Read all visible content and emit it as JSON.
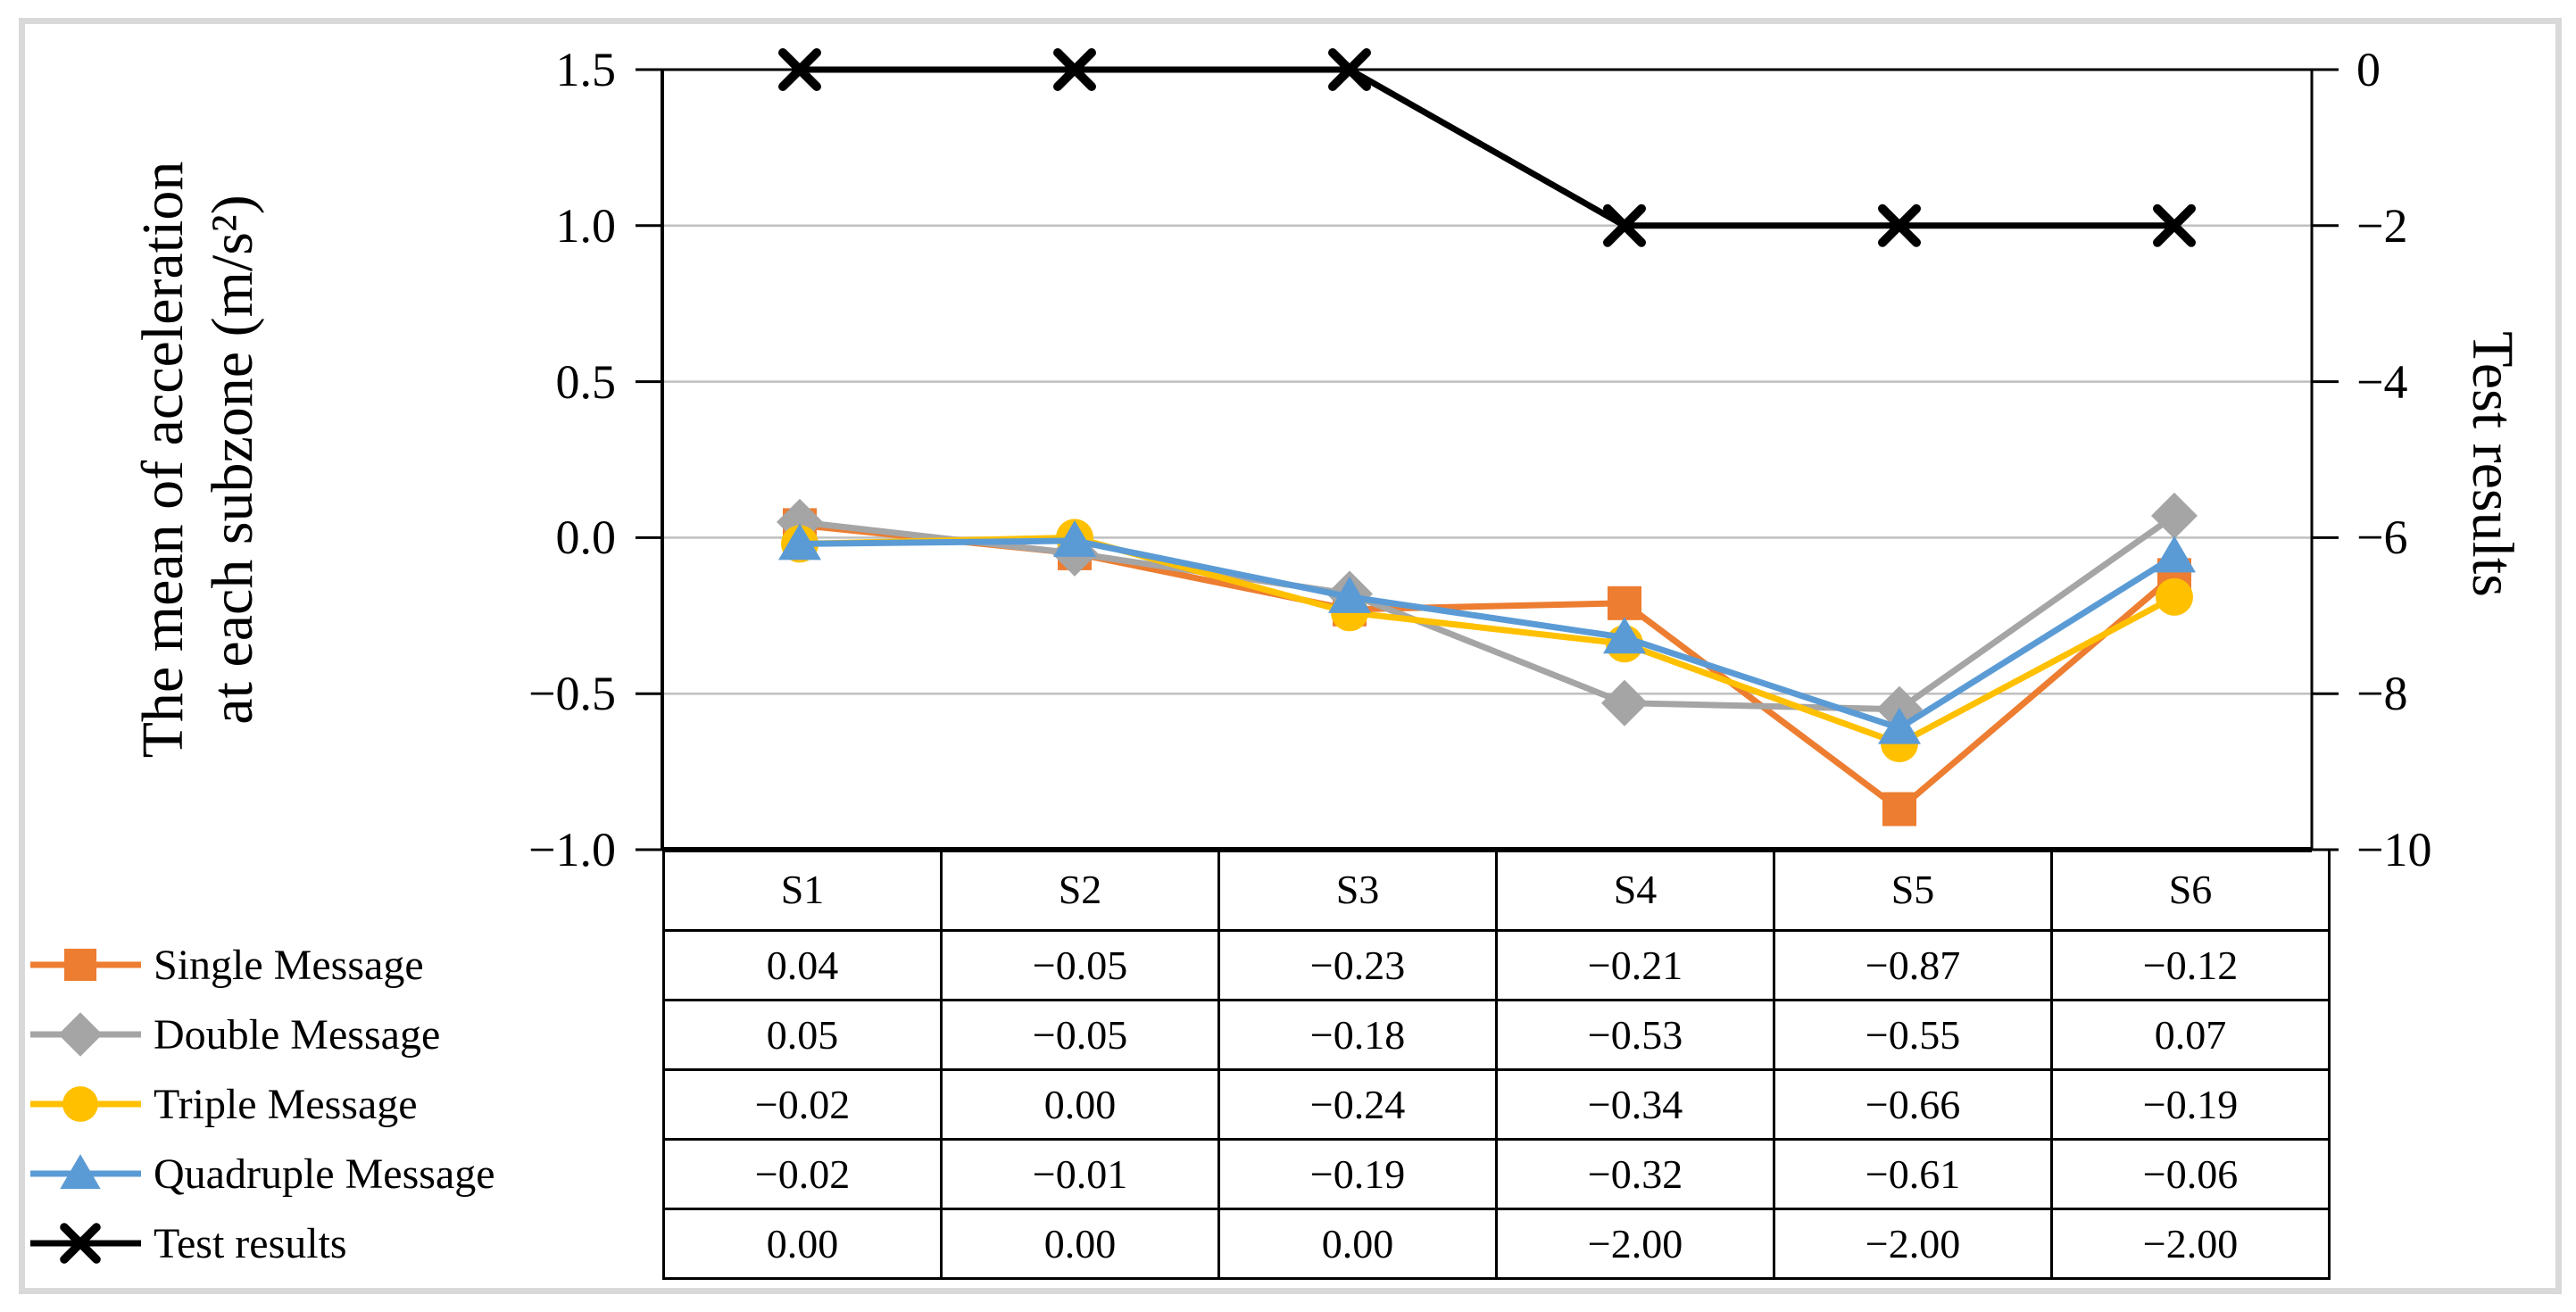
{
  "figure": {
    "background": "#FFFFFF",
    "frame_color": "#D9D9D9",
    "grid_color": "#BFBFBF",
    "axis_color": "#000000"
  },
  "chart_data": {
    "type": "line",
    "categories": [
      "S1",
      "S2",
      "S3",
      "S4",
      "S5",
      "S6"
    ],
    "series": [
      {
        "name": "Single Message",
        "color": "#ED7D31",
        "marker": "square",
        "axis": "left",
        "values": [
          0.04,
          -0.05,
          -0.23,
          -0.21,
          -0.87,
          -0.12
        ]
      },
      {
        "name": "Double Message",
        "color": "#A5A5A5",
        "marker": "diamond",
        "axis": "left",
        "values": [
          0.05,
          -0.05,
          -0.18,
          -0.53,
          -0.55,
          0.07
        ]
      },
      {
        "name": "Triple Message",
        "color": "#FFC000",
        "marker": "circle",
        "axis": "left",
        "values": [
          -0.02,
          0.0,
          -0.24,
          -0.34,
          -0.66,
          -0.19
        ]
      },
      {
        "name": "Quadruple Message",
        "color": "#5B9BD5",
        "marker": "triangle",
        "axis": "left",
        "values": [
          -0.02,
          -0.01,
          -0.19,
          -0.32,
          -0.61,
          -0.06
        ]
      },
      {
        "name": "Test results",
        "color": "#000000",
        "marker": "x",
        "axis": "right",
        "values": [
          0.0,
          0.0,
          0.0,
          -2.0,
          -2.0,
          -2.0
        ]
      }
    ],
    "left_axis": {
      "title_line1": "The mean of acceleration",
      "title_line2": "at each subzone (m/s²)",
      "tick_labels": [
        "1.5",
        "1.0",
        "0.5",
        "0.0",
        "−0.5",
        "−1.0"
      ],
      "tick_values": [
        1.5,
        1.0,
        0.5,
        0.0,
        -0.5,
        -1.0
      ],
      "min": -1.0,
      "max": 1.5
    },
    "right_axis": {
      "title": "Test results",
      "tick_labels": [
        "0",
        "−2",
        "−4",
        "−6",
        "−8",
        "−10"
      ],
      "tick_values": [
        0,
        -2,
        -4,
        -6,
        -8,
        -10
      ],
      "min": -10,
      "max": 0
    },
    "grid": true,
    "legend_position": "left-of-table",
    "table_values": [
      [
        "0.04",
        "−0.05",
        "−0.23",
        "−0.21",
        "−0.87",
        "−0.12"
      ],
      [
        "0.05",
        "−0.05",
        "−0.18",
        "−0.53",
        "−0.55",
        "0.07"
      ],
      [
        "−0.02",
        "0.00",
        "−0.24",
        "−0.34",
        "−0.66",
        "−0.19"
      ],
      [
        "−0.02",
        "−0.01",
        "−0.19",
        "−0.32",
        "−0.61",
        "−0.06"
      ],
      [
        "0.00",
        "0.00",
        "0.00",
        "−2.00",
        "−2.00",
        "−2.00"
      ]
    ]
  }
}
